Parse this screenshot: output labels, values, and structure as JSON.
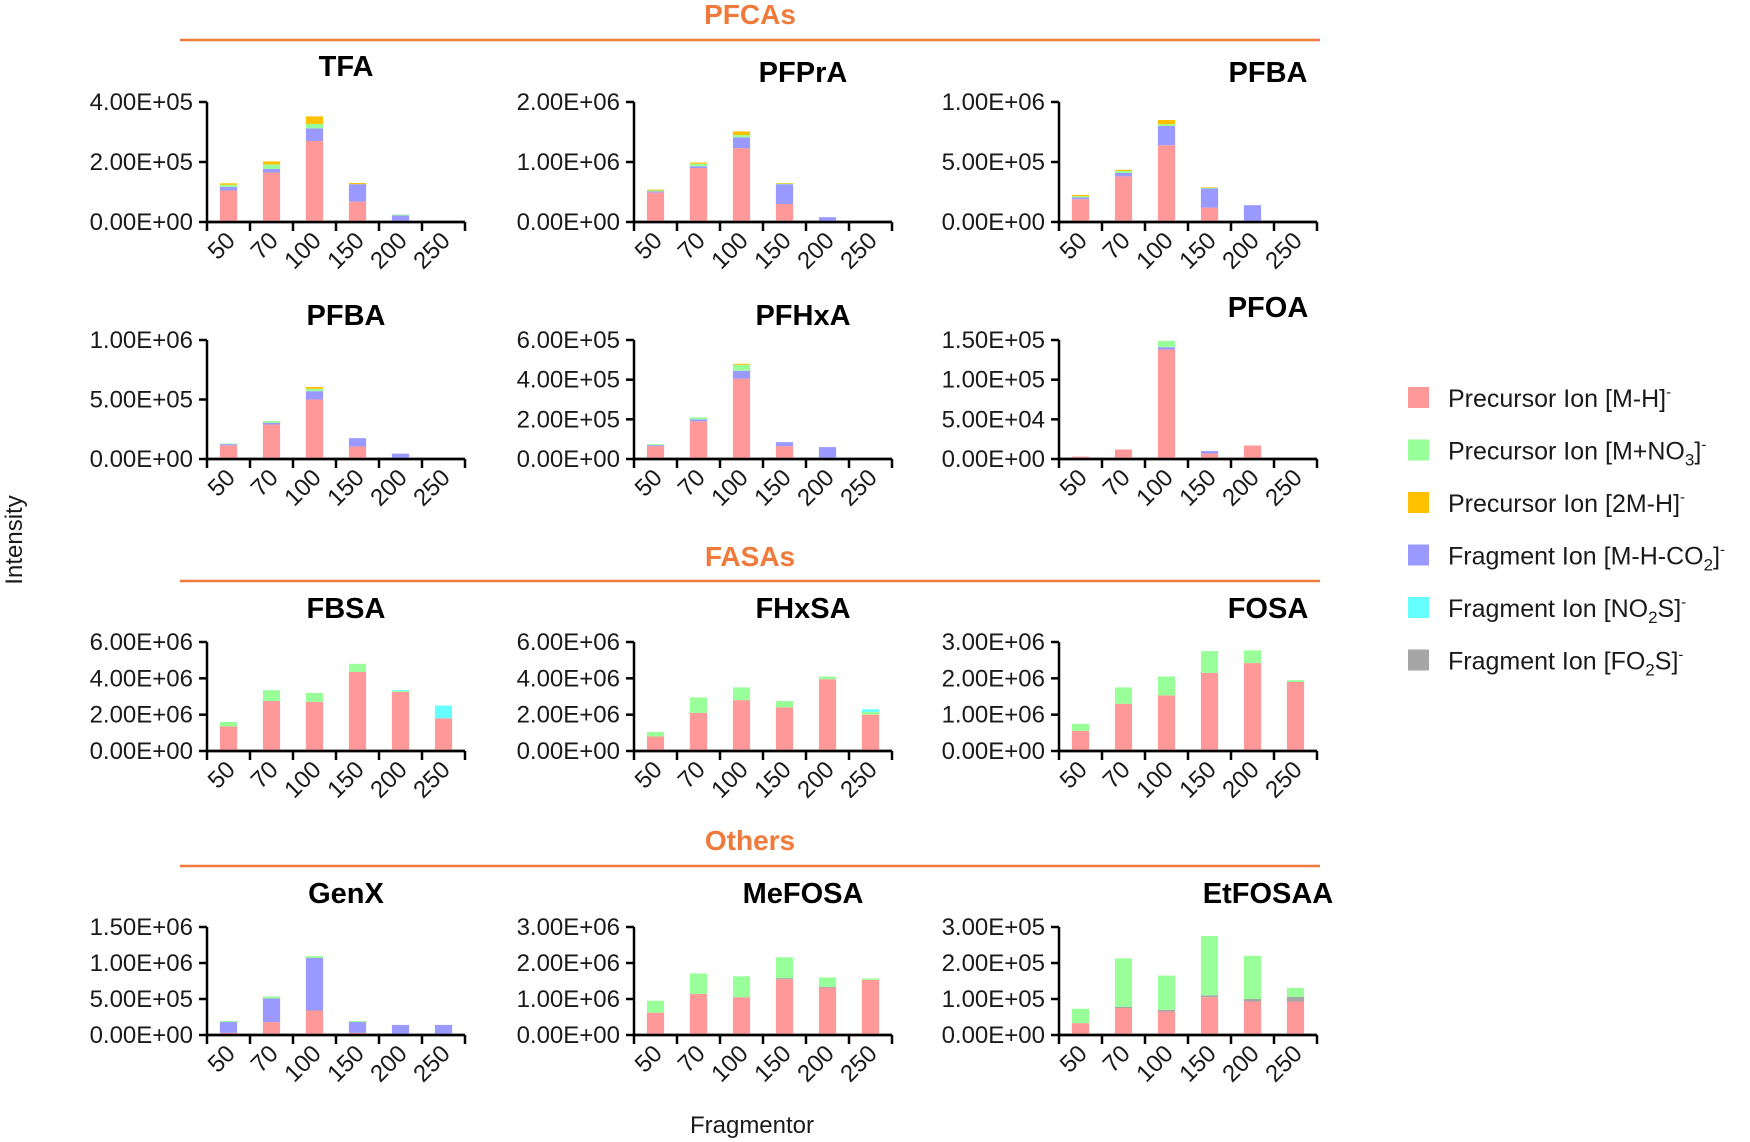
{
  "figure": {
    "ylabel": "Intensity",
    "xlabel": "Fragmentor",
    "sections": [
      {
        "name": "PFCAs",
        "color": "#f07a3c"
      },
      {
        "name": "FASAs",
        "color": "#f07a3c"
      },
      {
        "name": "Others",
        "color": "#f07a3c"
      }
    ]
  },
  "legend": {
    "placement": "right",
    "items": [
      {
        "base": "Precursor Ion [M-H]",
        "sub": "",
        "after": "]",
        "sup": "-",
        "color": "#ff9999",
        "label": "Precursor Ion [M-H]-"
      },
      {
        "base": "Precursor Ion [M+NO",
        "sub": "3",
        "after": "]",
        "sup": "-",
        "color": "#99ff99",
        "label": "Precursor Ion [M+NO3]-"
      },
      {
        "base": "Precursor Ion [2M-H]",
        "sub": "",
        "after": "]",
        "sup": "-",
        "color": "#ffc000",
        "label": "Precursor Ion [2M-H]-"
      },
      {
        "base": "Fragment Ion [M-H-CO",
        "sub": "2",
        "after": "]",
        "sup": "-",
        "color": "#9999ff",
        "label": "Fragment Ion [M-H-CO2]-"
      },
      {
        "base": "Fragment Ion [NO",
        "sub": "2",
        "after": "S]",
        "sup": "-",
        "color": "#66ffff",
        "label": "Fragment Ion [NO2S]-"
      },
      {
        "base": "Fragment Ion [FO",
        "sub": "2",
        "after": "S]",
        "sup": "-",
        "color": "#a6a6a6",
        "label": "Fragment Ion [FO2S]-"
      }
    ]
  },
  "chart_data": [
    {
      "type": "bar",
      "stacked": true,
      "section": "PFCAs",
      "title": "TFA",
      "categories": [
        "50",
        "70",
        "100",
        "150",
        "200",
        "250"
      ],
      "yticks": [
        "0.00E+00",
        "2.00E+05",
        "4.00E+05"
      ],
      "ylim": [
        0,
        400000
      ],
      "series": [
        {
          "name": "Precursor Ion [M-H]-",
          "values": [
            105000,
            165000,
            270000,
            68000,
            0,
            0
          ]
        },
        {
          "name": "Fragment Ion [M-H-CO2]-",
          "values": [
            12000,
            12000,
            42000,
            58000,
            22000,
            4000
          ]
        },
        {
          "name": "Precursor Ion [M+NO3]-",
          "values": [
            7000,
            15000,
            15000,
            0,
            3000,
            0
          ]
        },
        {
          "name": "Precursor Ion [2M-H]-",
          "values": [
            5000,
            10000,
            25000,
            4000,
            0,
            0
          ]
        }
      ]
    },
    {
      "type": "bar",
      "stacked": true,
      "section": "PFCAs",
      "title": "PFPrA",
      "categories": [
        "50",
        "70",
        "100",
        "150",
        "200",
        "250"
      ],
      "yticks": [
        "0.00E+00",
        "1.00E+06",
        "2.00E+06"
      ],
      "ylim": [
        0,
        2000000
      ],
      "series": [
        {
          "name": "Precursor Ion [M-H]-",
          "values": [
            490000,
            900000,
            1230000,
            300000,
            0,
            0
          ]
        },
        {
          "name": "Fragment Ion [M-H-CO2]-",
          "values": [
            20000,
            30000,
            180000,
            330000,
            80000,
            15000
          ]
        },
        {
          "name": "Precursor Ion [M+NO3]-",
          "values": [
            15000,
            40000,
            40000,
            10000,
            0,
            0
          ]
        },
        {
          "name": "Precursor Ion [2M-H]-",
          "values": [
            15000,
            20000,
            60000,
            10000,
            0,
            0
          ]
        }
      ]
    },
    {
      "type": "bar",
      "stacked": true,
      "section": "PFCAs",
      "title": "PFBA",
      "categories": [
        "50",
        "70",
        "100",
        "150",
        "200",
        "250"
      ],
      "yticks": [
        "0.00E+00",
        "5.00E+05",
        "1.00E+06"
      ],
      "ylim": [
        0,
        1000000
      ],
      "series": [
        {
          "name": "Precursor Ion [M-H]-",
          "values": [
            190000,
            380000,
            640000,
            120000,
            0,
            0
          ]
        },
        {
          "name": "Fragment Ion [M-H-CO2]-",
          "values": [
            15000,
            30000,
            160000,
            160000,
            140000,
            10000
          ]
        },
        {
          "name": "Precursor Ion [M+NO3]-",
          "values": [
            10000,
            15000,
            15000,
            5000,
            0,
            0
          ]
        },
        {
          "name": "Precursor Ion [2M-H]-",
          "values": [
            10000,
            10000,
            35000,
            5000,
            0,
            0
          ]
        }
      ]
    },
    {
      "type": "bar",
      "stacked": true,
      "section": "PFCAs",
      "title": "PFBA",
      "categories": [
        "50",
        "70",
        "100",
        "150",
        "200",
        "250"
      ],
      "yticks": [
        "0.00E+00",
        "5.00E+05",
        "1.00E+06"
      ],
      "ylim": [
        0,
        1000000
      ],
      "series": [
        {
          "name": "Precursor Ion [M-H]-",
          "values": [
            115000,
            290000,
            500000,
            105000,
            0,
            0
          ]
        },
        {
          "name": "Fragment Ion [M-H-CO2]-",
          "values": [
            10000,
            15000,
            70000,
            70000,
            45000,
            5000
          ]
        },
        {
          "name": "Precursor Ion [M+NO3]-",
          "values": [
            5000,
            15000,
            20000,
            0,
            0,
            0
          ]
        },
        {
          "name": "Precursor Ion [2M-H]-",
          "values": [
            0,
            0,
            15000,
            0,
            0,
            0
          ]
        }
      ]
    },
    {
      "type": "bar",
      "stacked": true,
      "section": "PFCAs",
      "title": "PFHxA",
      "categories": [
        "50",
        "70",
        "100",
        "150",
        "200",
        "250"
      ],
      "yticks": [
        "0.00E+00",
        "2.00E+05",
        "4.00E+05",
        "6.00E+05"
      ],
      "ylim": [
        0,
        600000
      ],
      "series": [
        {
          "name": "Precursor Ion [M-H]-",
          "values": [
            65000,
            190000,
            405000,
            65000,
            5000,
            0
          ]
        },
        {
          "name": "Fragment Ion [M-H-CO2]-",
          "values": [
            5000,
            10000,
            40000,
            20000,
            55000,
            3000
          ]
        },
        {
          "name": "Precursor Ion [M+NO3]-",
          "values": [
            5000,
            10000,
            30000,
            0,
            0,
            0
          ]
        },
        {
          "name": "Precursor Ion [2M-H]-",
          "values": [
            0,
            0,
            5000,
            0,
            0,
            0
          ]
        }
      ]
    },
    {
      "type": "bar",
      "stacked": true,
      "section": "PFCAs",
      "title": "PFOA",
      "categories": [
        "50",
        "70",
        "100",
        "150",
        "200",
        "250"
      ],
      "yticks": [
        "0.00E+00",
        "5.00E+04",
        "1.00E+05",
        "1.50E+05"
      ],
      "ylim": [
        0,
        150000
      ],
      "series": [
        {
          "name": "Precursor Ion [M-H]-",
          "values": [
            3000,
            12000,
            138000,
            7000,
            17000,
            0
          ]
        },
        {
          "name": "Fragment Ion [M-H-CO2]-",
          "values": [
            0,
            0,
            3000,
            3000,
            0,
            0
          ]
        },
        {
          "name": "Precursor Ion [M+NO3]-",
          "values": [
            0,
            0,
            8000,
            0,
            0,
            0
          ]
        }
      ]
    },
    {
      "type": "bar",
      "stacked": true,
      "section": "FASAs",
      "title": "FBSA",
      "categories": [
        "50",
        "70",
        "100",
        "150",
        "200",
        "250"
      ],
      "yticks": [
        "0.00E+00",
        "2.00E+06",
        "4.00E+06",
        "6.00E+06"
      ],
      "ylim": [
        0,
        6000000
      ],
      "series": [
        {
          "name": "Precursor Ion [M-H]-",
          "values": [
            1350000,
            2750000,
            2700000,
            4350000,
            3250000,
            1800000
          ]
        },
        {
          "name": "Precursor Ion [M+NO3]-",
          "values": [
            250000,
            600000,
            500000,
            450000,
            50000,
            0
          ]
        },
        {
          "name": "Fragment Ion [NO2S]-",
          "values": [
            0,
            0,
            0,
            0,
            50000,
            700000
          ]
        }
      ]
    },
    {
      "type": "bar",
      "stacked": true,
      "section": "FASAs",
      "title": "FHxSA",
      "categories": [
        "50",
        "70",
        "100",
        "150",
        "200",
        "250"
      ],
      "yticks": [
        "0.00E+00",
        "2.00E+06",
        "4.00E+06",
        "6.00E+06"
      ],
      "ylim": [
        0,
        6000000
      ],
      "series": [
        {
          "name": "Precursor Ion [M-H]-",
          "values": [
            800000,
            2100000,
            2800000,
            2400000,
            3950000,
            2000000
          ]
        },
        {
          "name": "Precursor Ion [M+NO3]-",
          "values": [
            250000,
            850000,
            700000,
            350000,
            150000,
            150000
          ]
        },
        {
          "name": "Fragment Ion [NO2S]-",
          "values": [
            0,
            0,
            0,
            0,
            0,
            150000
          ]
        }
      ]
    },
    {
      "type": "bar",
      "stacked": true,
      "section": "FASAs",
      "title": "FOSA",
      "categories": [
        "50",
        "70",
        "100",
        "150",
        "200",
        "250"
      ],
      "yticks": [
        "0.00E+00",
        "1.00E+06",
        "2.00E+06",
        "3.00E+06"
      ],
      "ylim": [
        0,
        3000000
      ],
      "series": [
        {
          "name": "Precursor Ion [M-H]-",
          "values": [
            550000,
            1300000,
            1530000,
            2150000,
            2420000,
            1900000
          ]
        },
        {
          "name": "Precursor Ion [M+NO3]-",
          "values": [
            200000,
            450000,
            520000,
            600000,
            350000,
            50000
          ]
        }
      ]
    },
    {
      "type": "bar",
      "stacked": true,
      "section": "Others",
      "title": "GenX",
      "categories": [
        "50",
        "70",
        "100",
        "150",
        "200",
        "250"
      ],
      "yticks": [
        "0.00E+00",
        "5.00E+05",
        "1.00E+06",
        "1.50E+06"
      ],
      "ylim": [
        0,
        1500000
      ],
      "series": [
        {
          "name": "Precursor Ion [M-H]-",
          "values": [
            30000,
            180000,
            340000,
            30000,
            0,
            0
          ]
        },
        {
          "name": "Fragment Ion [M-H-CO2]-",
          "values": [
            150000,
            330000,
            730000,
            150000,
            140000,
            140000
          ]
        },
        {
          "name": "Precursor Ion [M+NO3]-",
          "values": [
            15000,
            25000,
            25000,
            15000,
            0,
            0
          ]
        }
      ]
    },
    {
      "type": "bar",
      "stacked": true,
      "section": "Others",
      "title": "MeFOSA",
      "categories": [
        "50",
        "70",
        "100",
        "150",
        "200",
        "250"
      ],
      "yticks": [
        "0.00E+00",
        "1.00E+06",
        "2.00E+06",
        "3.00E+06"
      ],
      "ylim": [
        0,
        3000000
      ],
      "series": [
        {
          "name": "Precursor Ion [M-H]-",
          "values": [
            620000,
            1140000,
            1050000,
            1550000,
            1310000,
            1530000
          ]
        },
        {
          "name": "Fragment Ion [FO2S]-",
          "values": [
            0,
            0,
            0,
            30000,
            30000,
            0
          ]
        },
        {
          "name": "Precursor Ion [M+NO3]-",
          "values": [
            330000,
            570000,
            580000,
            580000,
            260000,
            40000
          ]
        }
      ]
    },
    {
      "type": "bar",
      "stacked": true,
      "section": "Others",
      "title": "EtFOSAA",
      "categories": [
        "50",
        "70",
        "100",
        "150",
        "200",
        "250"
      ],
      "yticks": [
        "0.00E+00",
        "1.00E+05",
        "2.00E+05",
        "3.00E+05"
      ],
      "ylim": [
        0,
        300000
      ],
      "series": [
        {
          "name": "Precursor Ion [M-H]-",
          "values": [
            33000,
            75000,
            65000,
            105000,
            93000,
            93000
          ]
        },
        {
          "name": "Fragment Ion [FO2S]-",
          "values": [
            0,
            3000,
            5000,
            5000,
            7000,
            13000
          ]
        },
        {
          "name": "Precursor Ion [M+NO3]-",
          "values": [
            40000,
            135000,
            95000,
            165000,
            120000,
            25000
          ]
        }
      ]
    }
  ]
}
